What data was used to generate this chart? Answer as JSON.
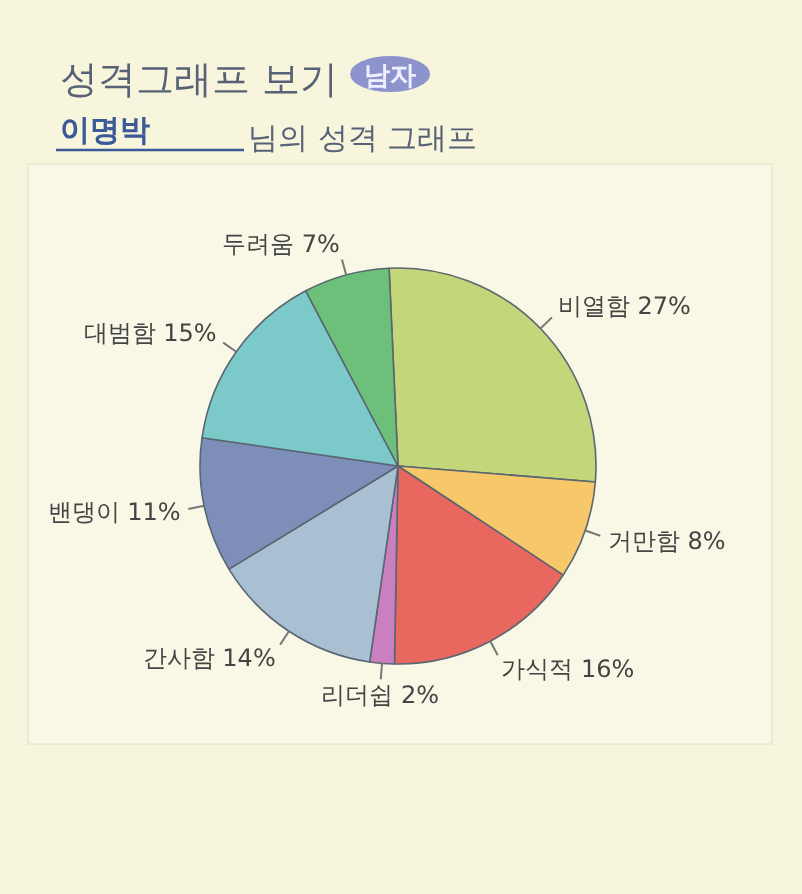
{
  "chart_data": {
    "type": "pie",
    "title": "성격그래프 보기",
    "subtitle": "이명박",
    "annotations": [
      "남자",
      "님의 성격 그래프"
    ],
    "categories": [
      "비열함",
      "거만함",
      "가식적",
      "리더쉽",
      "간사함",
      "밴댕이",
      "대범함",
      "두려움"
    ],
    "values": [
      27,
      8,
      16,
      2,
      14,
      11,
      15,
      7
    ],
    "value_labels": [
      "27%",
      "8%",
      "16%",
      "2%",
      "14%",
      "11%",
      "15%",
      "7%"
    ],
    "colors": [
      "#c3d67a",
      "#f7c86a",
      "#e8675f",
      "#c97fc0",
      "#a9c0d3",
      "#7d8fb8",
      "#7cc9c9",
      "#6cc07a"
    ]
  }
}
